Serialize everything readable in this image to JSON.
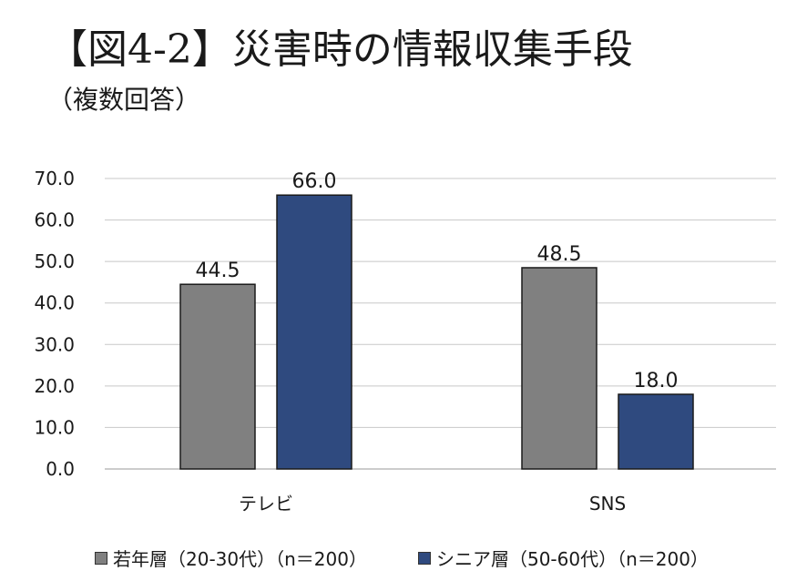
{
  "title": "【図4-2】災害時の情報収集手段",
  "subtitle": "（複数回答）",
  "chart_data": {
    "type": "bar",
    "categories": [
      "テレビ",
      "SNS"
    ],
    "series": [
      {
        "name": "若年層（20-30代）（n＝200）",
        "values": [
          44.5,
          48.5
        ],
        "color": "#808080"
      },
      {
        "name": "シニア層（50-60代）（n＝200）",
        "values": [
          66.0,
          18.0
        ],
        "color": "#2f4a7f"
      }
    ],
    "ylim": [
      0,
      70
    ],
    "yticks": [
      "0.0",
      "10.0",
      "20.0",
      "30.0",
      "40.0",
      "50.0",
      "60.0",
      "70.0"
    ],
    "data_labels": [
      "44.5",
      "48.5",
      "66.0",
      "18.0"
    ],
    "grid": true,
    "legend": "bottom"
  }
}
